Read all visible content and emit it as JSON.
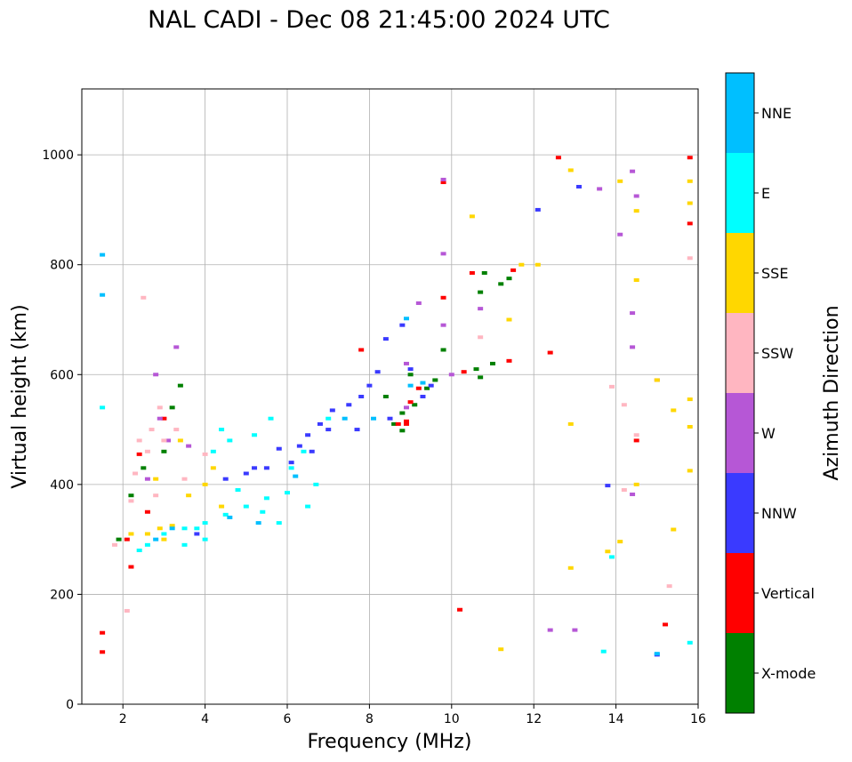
{
  "chart_data": {
    "type": "scatter",
    "title": "NAL CADI - Dec 08 21:45:00 2024 UTC",
    "xlabel": "Frequency (MHz)",
    "ylabel": "Virtual height (km)",
    "xlim": [
      1,
      16
    ],
    "ylim": [
      0,
      1120
    ],
    "xticks": [
      2,
      4,
      6,
      8,
      10,
      12,
      14,
      16
    ],
    "yticks": [
      0,
      200,
      400,
      600,
      800,
      1000
    ],
    "grid": true,
    "colorbar": {
      "title": "Azimuth Direction",
      "position": "right",
      "categories": [
        {
          "name": "X-mode",
          "color": "#008000"
        },
        {
          "name": "Vertical",
          "color": "#ff0000"
        },
        {
          "name": "NNW",
          "color": "#3a3aff"
        },
        {
          "name": "W",
          "color": "#b657d6"
        },
        {
          "name": "SSW",
          "color": "#ffb6c1"
        },
        {
          "name": "SSE",
          "color": "#ffd700"
        },
        {
          "name": "E",
          "color": "#00ffff"
        },
        {
          "name": "NNE",
          "color": "#00bfff"
        }
      ]
    },
    "series": [
      {
        "name": "X-mode",
        "points": [
          [
            8.6,
            510
          ],
          [
            8.8,
            530
          ],
          [
            9.1,
            545
          ],
          [
            9.4,
            575
          ],
          [
            9.6,
            590
          ],
          [
            10.6,
            610
          ],
          [
            10.7,
            595
          ],
          [
            11.0,
            620
          ],
          [
            11.2,
            765
          ],
          [
            11.4,
            775
          ],
          [
            10.7,
            750
          ],
          [
            9.0,
            600
          ],
          [
            8.4,
            560
          ],
          [
            3.2,
            540
          ],
          [
            3.4,
            580
          ],
          [
            2.5,
            430
          ],
          [
            2.2,
            380
          ],
          [
            1.9,
            300
          ],
          [
            3.0,
            460
          ],
          [
            9.8,
            645
          ],
          [
            10.8,
            785
          ],
          [
            8.8,
            498
          ]
        ]
      },
      {
        "name": "Vertical",
        "points": [
          [
            8.7,
            510
          ],
          [
            8.9,
            515
          ],
          [
            9.0,
            550
          ],
          [
            9.2,
            575
          ],
          [
            11.5,
            790
          ],
          [
            11.4,
            625
          ],
          [
            12.4,
            640
          ],
          [
            12.6,
            995
          ],
          [
            14.5,
            480
          ],
          [
            15.2,
            145
          ],
          [
            15.8,
            875
          ],
          [
            15.8,
            995
          ],
          [
            10.2,
            172
          ],
          [
            9.8,
            950
          ],
          [
            9.8,
            740
          ],
          [
            10.5,
            785
          ],
          [
            7.8,
            645
          ],
          [
            2.2,
            250
          ],
          [
            1.5,
            95
          ],
          [
            1.5,
            130
          ],
          [
            2.4,
            455
          ],
          [
            2.6,
            350
          ],
          [
            3.0,
            520
          ],
          [
            2.1,
            300
          ],
          [
            10.3,
            605
          ],
          [
            8.9,
            510
          ]
        ]
      },
      {
        "name": "NNW",
        "points": [
          [
            5.0,
            420
          ],
          [
            5.5,
            430
          ],
          [
            5.8,
            465
          ],
          [
            6.3,
            470
          ],
          [
            6.5,
            490
          ],
          [
            6.8,
            510
          ],
          [
            7.1,
            535
          ],
          [
            7.5,
            545
          ],
          [
            7.8,
            560
          ],
          [
            8.0,
            580
          ],
          [
            8.2,
            605
          ],
          [
            8.4,
            665
          ],
          [
            8.8,
            690
          ],
          [
            9.0,
            610
          ],
          [
            9.5,
            580
          ],
          [
            12.1,
            900
          ],
          [
            13.1,
            942
          ],
          [
            13.8,
            398
          ],
          [
            15.0,
            90
          ],
          [
            6.1,
            440
          ],
          [
            7.0,
            500
          ],
          [
            7.7,
            500
          ],
          [
            8.5,
            520
          ],
          [
            9.3,
            560
          ],
          [
            3.8,
            310
          ],
          [
            4.5,
            410
          ],
          [
            5.2,
            430
          ],
          [
            6.6,
            460
          ]
        ]
      },
      {
        "name": "W",
        "points": [
          [
            8.9,
            620
          ],
          [
            9.2,
            730
          ],
          [
            9.8,
            820
          ],
          [
            9.8,
            955
          ],
          [
            10.7,
            720
          ],
          [
            12.4,
            135
          ],
          [
            13.0,
            135
          ],
          [
            13.6,
            938
          ],
          [
            14.1,
            855
          ],
          [
            14.4,
            970
          ],
          [
            14.4,
            712
          ],
          [
            14.4,
            650
          ],
          [
            14.4,
            382
          ],
          [
            14.5,
            925
          ],
          [
            15.0,
            590
          ],
          [
            2.9,
            520
          ],
          [
            3.1,
            480
          ],
          [
            2.8,
            600
          ],
          [
            3.6,
            470
          ],
          [
            2.6,
            410
          ],
          [
            9.8,
            690
          ],
          [
            10.0,
            600
          ],
          [
            8.9,
            540
          ],
          [
            3.3,
            650
          ]
        ]
      },
      {
        "name": "SSW",
        "points": [
          [
            2.4,
            480
          ],
          [
            2.6,
            460
          ],
          [
            2.7,
            500
          ],
          [
            2.9,
            540
          ],
          [
            3.0,
            480
          ],
          [
            3.3,
            500
          ],
          [
            2.2,
            370
          ],
          [
            2.5,
            740
          ],
          [
            2.3,
            420
          ],
          [
            10.7,
            668
          ],
          [
            13.9,
            578
          ],
          [
            14.2,
            545
          ],
          [
            14.2,
            390
          ],
          [
            14.5,
            490
          ],
          [
            15.3,
            215
          ],
          [
            15.8,
            812
          ],
          [
            2.1,
            170
          ],
          [
            1.8,
            290
          ],
          [
            3.5,
            410
          ],
          [
            4.0,
            455
          ],
          [
            2.8,
            380
          ]
        ]
      },
      {
        "name": "SSE",
        "points": [
          [
            2.2,
            310
          ],
          [
            2.6,
            310
          ],
          [
            2.9,
            320
          ],
          [
            3.2,
            325
          ],
          [
            3.6,
            380
          ],
          [
            4.0,
            400
          ],
          [
            4.2,
            430
          ],
          [
            4.4,
            360
          ],
          [
            3.0,
            300
          ],
          [
            10.5,
            888
          ],
          [
            11.2,
            100
          ],
          [
            11.4,
            700
          ],
          [
            11.7,
            800
          ],
          [
            12.1,
            800
          ],
          [
            12.9,
            510
          ],
          [
            12.9,
            248
          ],
          [
            12.9,
            972
          ],
          [
            13.8,
            278
          ],
          [
            14.1,
            296
          ],
          [
            14.1,
            952
          ],
          [
            14.5,
            898
          ],
          [
            14.5,
            772
          ],
          [
            14.5,
            400
          ],
          [
            15.0,
            590
          ],
          [
            15.4,
            535
          ],
          [
            15.4,
            318
          ],
          [
            15.8,
            952
          ],
          [
            15.8,
            912
          ],
          [
            15.8,
            555
          ],
          [
            15.8,
            505
          ],
          [
            15.8,
            425
          ],
          [
            3.4,
            480
          ],
          [
            2.8,
            410
          ]
        ]
      },
      {
        "name": "E",
        "points": [
          [
            3.0,
            310
          ],
          [
            3.5,
            320
          ],
          [
            4.0,
            330
          ],
          [
            4.5,
            345
          ],
          [
            5.0,
            360
          ],
          [
            5.5,
            375
          ],
          [
            6.0,
            385
          ],
          [
            4.8,
            390
          ],
          [
            4.2,
            460
          ],
          [
            4.6,
            480
          ],
          [
            5.2,
            490
          ],
          [
            5.6,
            520
          ],
          [
            6.1,
            430
          ],
          [
            6.4,
            460
          ],
          [
            6.7,
            400
          ],
          [
            7.0,
            520
          ],
          [
            4.0,
            300
          ],
          [
            3.5,
            290
          ],
          [
            2.6,
            290
          ],
          [
            2.4,
            280
          ],
          [
            5.8,
            330
          ],
          [
            6.5,
            360
          ],
          [
            13.7,
            96
          ],
          [
            13.9,
            268
          ],
          [
            15.8,
            112
          ],
          [
            1.5,
            540
          ],
          [
            4.4,
            500
          ],
          [
            3.8,
            320
          ],
          [
            5.4,
            350
          ]
        ]
      },
      {
        "name": "NNE",
        "points": [
          [
            1.5,
            818
          ],
          [
            1.5,
            745
          ],
          [
            8.9,
            702
          ],
          [
            9.0,
            580
          ],
          [
            9.3,
            585
          ],
          [
            15.0,
            92
          ],
          [
            3.2,
            320
          ],
          [
            4.6,
            340
          ],
          [
            5.3,
            330
          ],
          [
            2.8,
            300
          ],
          [
            6.2,
            415
          ],
          [
            7.4,
            520
          ],
          [
            8.1,
            520
          ]
        ]
      }
    ]
  }
}
